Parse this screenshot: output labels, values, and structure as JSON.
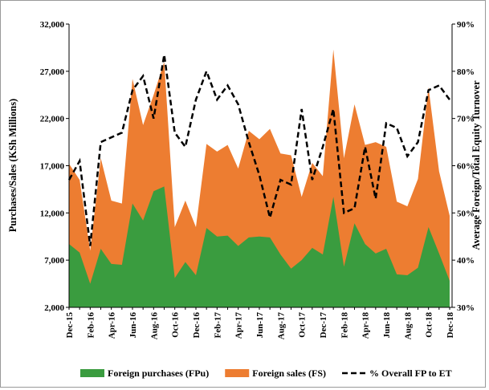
{
  "chart_data": {
    "type": "area-line",
    "y_label": "Purchases/Sales (KSh Millions)",
    "y2_label": "Average Foreign/Total Equity Turnover",
    "categories": [
      "Dec-15",
      null,
      "Feb-16",
      null,
      "Apr-16",
      null,
      "Jun-16",
      null,
      "Aug-16",
      null,
      "Oct-16",
      null,
      "Dec-16",
      null,
      "Feb-17",
      null,
      "Apr-17",
      null,
      "Jun-17",
      null,
      "Aug-17",
      null,
      "Oct-17",
      null,
      "Dec-17",
      null,
      "Feb-18",
      null,
      "Apr-18",
      null,
      "Jun-18",
      null,
      "Aug-18",
      null,
      "Oct-18",
      null,
      "Dec-18"
    ],
    "series": [
      {
        "name": "Foreign sales (FS)",
        "color": "#ed7d31",
        "kind": "area",
        "values": [
          17200,
          15500,
          8000,
          17800,
          13300,
          13000,
          26200,
          21300,
          24500,
          28000,
          10500,
          13300,
          10500,
          19300,
          18500,
          19200,
          16700,
          20700,
          19800,
          20900,
          18300,
          18100,
          13700,
          17300,
          15900,
          29300,
          17800,
          23500,
          19200,
          19500,
          19000,
          13200,
          12700,
          15600,
          25300,
          16400,
          11700
        ]
      },
      {
        "name": "Foreign purchases (FPu)",
        "color": "#3a9c3f",
        "kind": "area",
        "values": [
          8700,
          7800,
          4500,
          8200,
          6600,
          6500,
          13000,
          11200,
          14300,
          14800,
          5100,
          6800,
          5400,
          10400,
          9500,
          9600,
          8500,
          9400,
          9500,
          9400,
          7600,
          6100,
          7000,
          8300,
          7600,
          13700,
          6300,
          10900,
          8700,
          7700,
          8200,
          5500,
          5400,
          6200,
          10500,
          7700,
          4800
        ]
      },
      {
        "name": "% Overall FP to ET",
        "color": "#000000",
        "kind": "line",
        "axis": "y2",
        "values": [
          57,
          61,
          43,
          65,
          66,
          67,
          76,
          79,
          70,
          83.5,
          67,
          64,
          74,
          80,
          74,
          77,
          73,
          65,
          58,
          49,
          57,
          56,
          72,
          57,
          64,
          72,
          50,
          51,
          64,
          53,
          69,
          68,
          62,
          65,
          76,
          77,
          74
        ]
      }
    ],
    "legend_order": [
      1,
      0,
      2
    ],
    "ylim": [
      2000,
      32000
    ],
    "yticks": [
      {
        "value": 2000,
        "label": "2,000"
      },
      {
        "value": 7000,
        "label": "7,000"
      },
      {
        "value": 12000,
        "label": "12,000"
      },
      {
        "value": 17000,
        "label": "17,000"
      },
      {
        "value": 22000,
        "label": "22,000"
      },
      {
        "value": 27000,
        "label": "27,000"
      },
      {
        "value": 32000,
        "label": "32,000"
      }
    ],
    "y2lim": [
      30,
      90
    ],
    "y2ticks": [
      {
        "value": 30,
        "label": "30%"
      },
      {
        "value": 40,
        "label": "40%"
      },
      {
        "value": 50,
        "label": "50%"
      },
      {
        "value": 60,
        "label": "60%"
      },
      {
        "value": 70,
        "label": "70%"
      },
      {
        "value": 80,
        "label": "80%"
      },
      {
        "value": 90,
        "label": "90%"
      }
    ]
  }
}
